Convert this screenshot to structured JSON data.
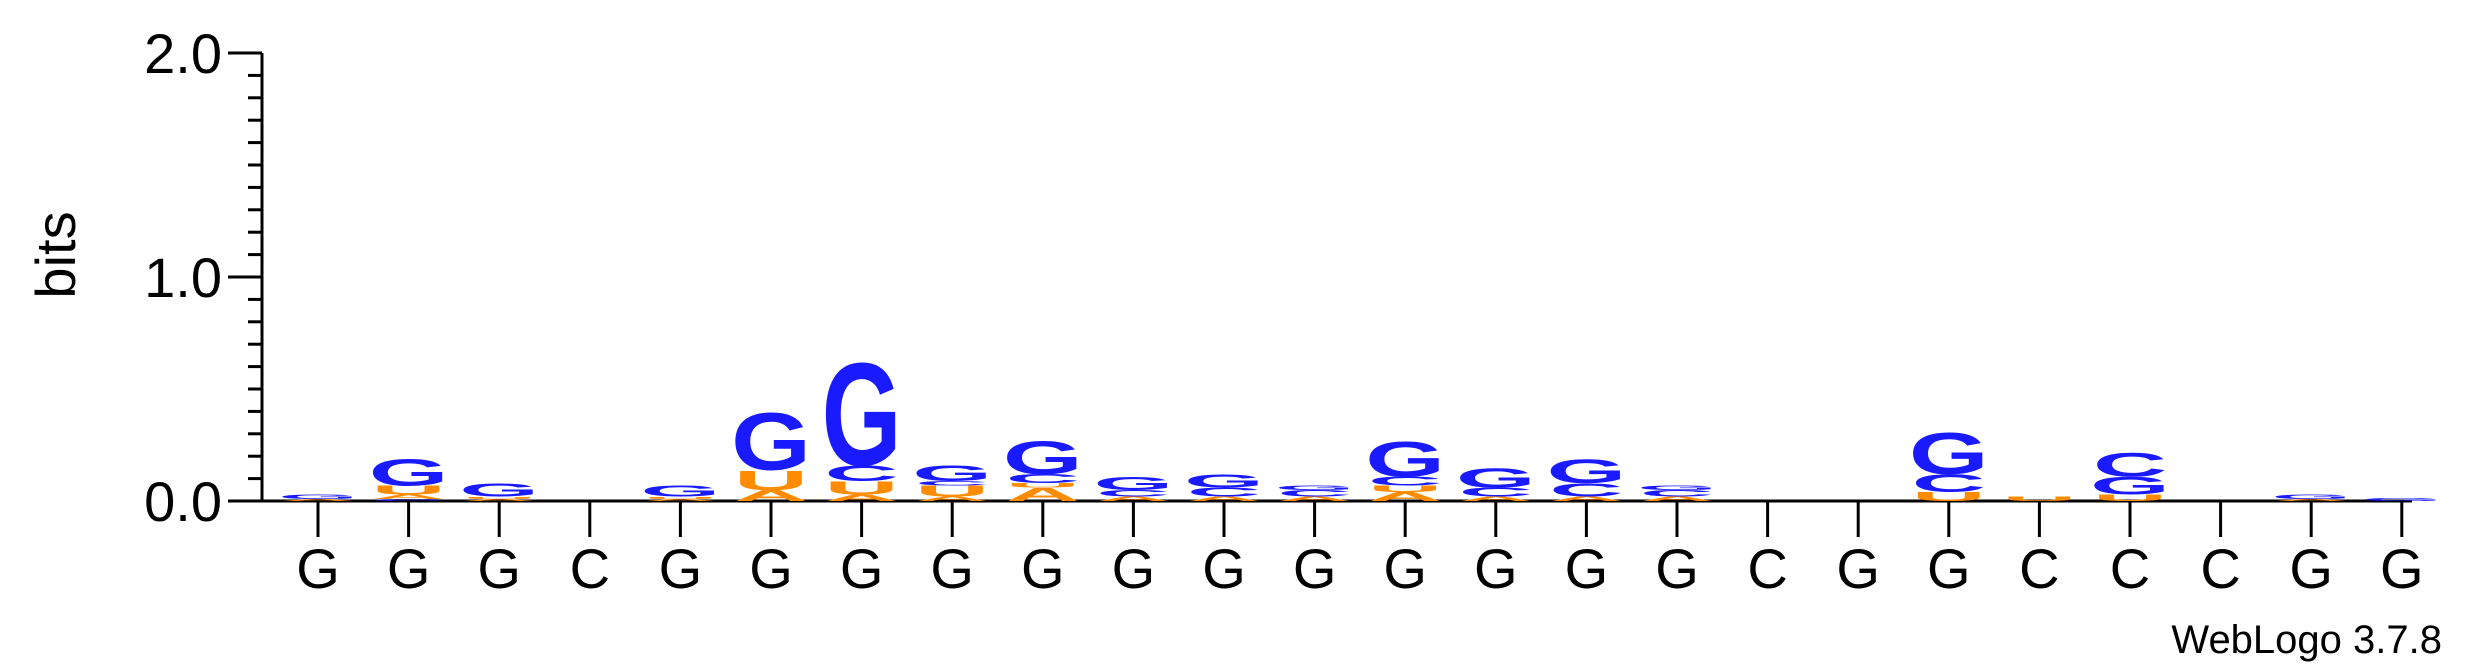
{
  "chart_data": {
    "type": "sequence-logo",
    "ylabel": "bits",
    "ylim": [
      0,
      2.0
    ],
    "yticks": [
      {
        "value": 0.0,
        "label": "0.0"
      },
      {
        "value": 1.0,
        "label": "1.0"
      },
      {
        "value": 2.0,
        "label": "2.0"
      }
    ],
    "x_tick_labels": [
      "G",
      "G",
      "G",
      "C",
      "G",
      "G",
      "G",
      "G",
      "G",
      "G",
      "G",
      "G",
      "G",
      "G",
      "G",
      "G",
      "C",
      "G",
      "G",
      "C",
      "C",
      "C",
      "G",
      "G"
    ],
    "colors": {
      "G": "#1a1aff",
      "C": "#1a1aff",
      "U": "#ff8c00",
      "A": "#ff8c00",
      "axis": "#000000"
    },
    "positions": [
      {
        "stack": [
          {
            "letter": "A",
            "bits": 0.008
          },
          {
            "letter": "G",
            "bits": 0.02
          }
        ]
      },
      {
        "stack": [
          {
            "letter": "C",
            "bits": 0.01
          },
          {
            "letter": "A",
            "bits": 0.02
          },
          {
            "letter": "U",
            "bits": 0.04
          },
          {
            "letter": "G",
            "bits": 0.12
          }
        ]
      },
      {
        "stack": [
          {
            "letter": "A",
            "bits": 0.01
          },
          {
            "letter": "U",
            "bits": 0.01
          },
          {
            "letter": "G",
            "bits": 0.06
          }
        ]
      },
      {
        "stack": []
      },
      {
        "stack": [
          {
            "letter": "A",
            "bits": 0.01
          },
          {
            "letter": "U",
            "bits": 0.01
          },
          {
            "letter": "G",
            "bits": 0.05
          }
        ]
      },
      {
        "stack": [
          {
            "letter": "A",
            "bits": 0.05
          },
          {
            "letter": "U",
            "bits": 0.09
          },
          {
            "letter": "G",
            "bits": 0.26
          }
        ]
      },
      {
        "stack": [
          {
            "letter": "A",
            "bits": 0.03
          },
          {
            "letter": "U",
            "bits": 0.06
          },
          {
            "letter": "C",
            "bits": 0.07
          },
          {
            "letter": "G",
            "bits": 0.47
          }
        ]
      },
      {
        "stack": [
          {
            "letter": "A",
            "bits": 0.02
          },
          {
            "letter": "U",
            "bits": 0.05
          },
          {
            "letter": "C",
            "bits": 0.02
          },
          {
            "letter": "G",
            "bits": 0.07
          }
        ]
      },
      {
        "stack": [
          {
            "letter": "A",
            "bits": 0.06
          },
          {
            "letter": "U",
            "bits": 0.02
          },
          {
            "letter": "C",
            "bits": 0.04
          },
          {
            "letter": "G",
            "bits": 0.15
          }
        ]
      },
      {
        "stack": [
          {
            "letter": "A",
            "bits": 0.02
          },
          {
            "letter": "C",
            "bits": 0.03
          },
          {
            "letter": "G",
            "bits": 0.06
          }
        ]
      },
      {
        "stack": [
          {
            "letter": "A",
            "bits": 0.02
          },
          {
            "letter": "C",
            "bits": 0.04
          },
          {
            "letter": "G",
            "bits": 0.06
          }
        ]
      },
      {
        "stack": [
          {
            "letter": "A",
            "bits": 0.02
          },
          {
            "letter": "C",
            "bits": 0.03
          },
          {
            "letter": "G",
            "bits": 0.02
          }
        ]
      },
      {
        "stack": [
          {
            "letter": "A",
            "bits": 0.04
          },
          {
            "letter": "U",
            "bits": 0.03
          },
          {
            "letter": "C",
            "bits": 0.04
          },
          {
            "letter": "G",
            "bits": 0.16
          }
        ]
      },
      {
        "stack": [
          {
            "letter": "A",
            "bits": 0.02
          },
          {
            "letter": "C",
            "bits": 0.04
          },
          {
            "letter": "G",
            "bits": 0.09
          }
        ]
      },
      {
        "stack": [
          {
            "letter": "A",
            "bits": 0.02
          },
          {
            "letter": "C",
            "bits": 0.06
          },
          {
            "letter": "G",
            "bits": 0.11
          }
        ]
      },
      {
        "stack": [
          {
            "letter": "A",
            "bits": 0.02
          },
          {
            "letter": "C",
            "bits": 0.03
          },
          {
            "letter": "G",
            "bits": 0.02
          }
        ]
      },
      {
        "stack": []
      },
      {
        "stack": []
      },
      {
        "stack": [
          {
            "letter": "U",
            "bits": 0.04
          },
          {
            "letter": "C",
            "bits": 0.08
          },
          {
            "letter": "G",
            "bits": 0.19
          }
        ]
      },
      {
        "stack": [
          {
            "letter": "U",
            "bits": 0.02
          }
        ]
      },
      {
        "stack": [
          {
            "letter": "U",
            "bits": 0.03
          },
          {
            "letter": "G",
            "bits": 0.08
          },
          {
            "letter": "C",
            "bits": 0.11
          }
        ]
      },
      {
        "stack": []
      },
      {
        "stack": [
          {
            "letter": "A",
            "bits": 0.01
          },
          {
            "letter": "G",
            "bits": 0.02
          }
        ]
      },
      {
        "stack": [
          {
            "letter": "G",
            "bits": 0.015
          }
        ]
      }
    ],
    "watermark": "WebLogo 3.7.8"
  }
}
